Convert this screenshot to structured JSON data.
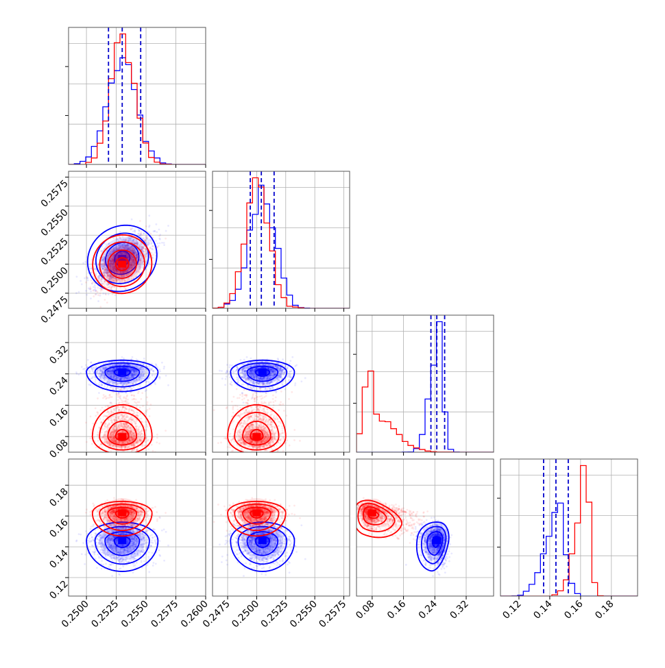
{
  "chart_data": {
    "type": "corner",
    "parameters": [
      "",
      "",
      "",
      ""
    ],
    "colors": {
      "series_a": "#0000ff",
      "series_b": "#ff0000",
      "quantile_line": "#0000cc",
      "grid": "#b0b0b0",
      "frame": "#555555"
    },
    "ranges": [
      [
        0.2485,
        0.26
      ],
      [
        0.2462,
        0.258
      ],
      [
        0.04,
        0.39
      ],
      [
        0.108,
        0.197
      ]
    ],
    "ticks": [
      [
        0.25,
        0.2525,
        0.255,
        0.2575,
        0.26
      ],
      [
        0.2475,
        0.25,
        0.2525,
        0.255,
        0.2575
      ],
      [
        0.08,
        0.16,
        0.24,
        0.32
      ],
      [
        0.12,
        0.14,
        0.16,
        0.18
      ]
    ],
    "tick_labels": [
      [
        "0.2500",
        "0.2525",
        "0.2550",
        "0.2575",
        "0.2600"
      ],
      [
        "0.2475",
        "0.2500",
        "0.2525",
        "0.2550",
        "0.2575"
      ],
      [
        "0.08",
        "0.16",
        "0.24",
        "0.32"
      ],
      [
        "0.12",
        "0.14",
        "0.16",
        "0.18"
      ]
    ],
    "series": [
      {
        "key": "series_a",
        "means": [
          0.253,
          0.2505,
          0.245,
          0.144
        ],
        "sds": [
          0.0012,
          0.0011,
          0.02,
          0.008
        ],
        "skew": [
          1.0,
          1.0,
          0.6,
          0.6
        ],
        "correlations": {
          "0-1": 0.6,
          "2-3": -0.2
        },
        "quantiles": [
          [
            0.25185,
            0.253,
            0.25455
          ],
          [
            0.24945,
            0.2504,
            0.2515
          ],
          [
            0.23,
            0.245,
            0.265
          ],
          [
            0.136,
            0.144,
            0.152
          ]
        ]
      },
      {
        "key": "series_b",
        "means": [
          0.253,
          0.25,
          0.08,
          0.162
        ],
        "sds": [
          0.001,
          0.001,
          0.018,
          0.006
        ],
        "skew": [
          1.0,
          1.0,
          3.0,
          0.5
        ],
        "correlations": {
          "0-1": 0.6,
          "2-3": -0.4
        },
        "quantiles": []
      }
    ]
  }
}
